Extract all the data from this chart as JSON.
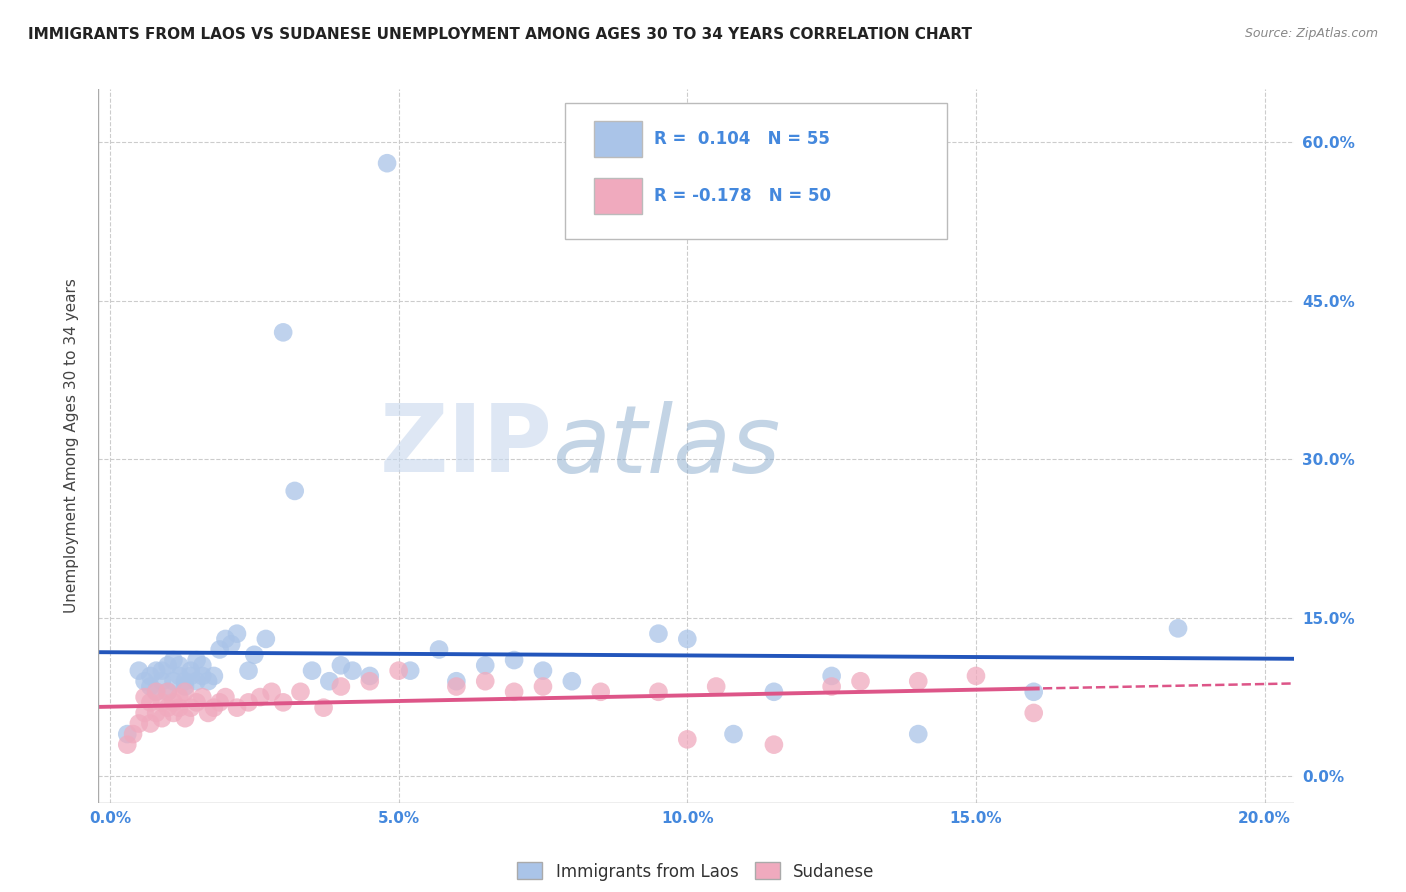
{
  "title": "IMMIGRANTS FROM LAOS VS SUDANESE UNEMPLOYMENT AMONG AGES 30 TO 34 YEARS CORRELATION CHART",
  "source": "Source: ZipAtlas.com",
  "ylabel": "Unemployment Among Ages 30 to 34 years",
  "xlabel_ticks": [
    "0.0%",
    "5.0%",
    "10.0%",
    "15.0%",
    "20.0%"
  ],
  "xlabel_vals": [
    0.0,
    0.05,
    0.1,
    0.15,
    0.2
  ],
  "ylabel_ticks": [
    "0.0%",
    "15.0%",
    "30.0%",
    "45.0%",
    "60.0%"
  ],
  "ylabel_vals": [
    0.0,
    0.15,
    0.3,
    0.45,
    0.6
  ],
  "xlim": [
    -0.002,
    0.205
  ],
  "ylim": [
    -0.025,
    0.65
  ],
  "blue_color": "#aac4e8",
  "pink_color": "#f0aabe",
  "blue_line_color": "#2255bb",
  "pink_line_color": "#dd5588",
  "grid_color": "#cccccc",
  "watermark_zip": "ZIP",
  "watermark_atlas": "atlas",
  "legend_bottom_blue": "Immigrants from Laos",
  "legend_bottom_pink": "Sudanese",
  "blue_scatter_x": [
    0.003,
    0.005,
    0.006,
    0.007,
    0.007,
    0.008,
    0.008,
    0.009,
    0.009,
    0.01,
    0.01,
    0.011,
    0.011,
    0.012,
    0.012,
    0.013,
    0.013,
    0.014,
    0.014,
    0.015,
    0.015,
    0.016,
    0.016,
    0.017,
    0.018,
    0.019,
    0.02,
    0.021,
    0.022,
    0.024,
    0.025,
    0.027,
    0.03,
    0.032,
    0.035,
    0.038,
    0.04,
    0.042,
    0.045,
    0.048,
    0.052,
    0.057,
    0.06,
    0.065,
    0.07,
    0.075,
    0.08,
    0.095,
    0.1,
    0.108,
    0.115,
    0.125,
    0.14,
    0.16,
    0.185
  ],
  "blue_scatter_y": [
    0.04,
    0.1,
    0.09,
    0.085,
    0.095,
    0.08,
    0.1,
    0.09,
    0.1,
    0.08,
    0.105,
    0.09,
    0.11,
    0.095,
    0.105,
    0.085,
    0.09,
    0.095,
    0.1,
    0.09,
    0.11,
    0.095,
    0.105,
    0.09,
    0.095,
    0.12,
    0.13,
    0.125,
    0.135,
    0.1,
    0.115,
    0.13,
    0.42,
    0.27,
    0.1,
    0.09,
    0.105,
    0.1,
    0.095,
    0.58,
    0.1,
    0.12,
    0.09,
    0.105,
    0.11,
    0.1,
    0.09,
    0.135,
    0.13,
    0.04,
    0.08,
    0.095,
    0.04,
    0.08,
    0.14
  ],
  "pink_scatter_x": [
    0.003,
    0.004,
    0.005,
    0.006,
    0.006,
    0.007,
    0.007,
    0.008,
    0.008,
    0.009,
    0.009,
    0.01,
    0.01,
    0.011,
    0.011,
    0.012,
    0.012,
    0.013,
    0.013,
    0.014,
    0.015,
    0.016,
    0.017,
    0.018,
    0.019,
    0.02,
    0.022,
    0.024,
    0.026,
    0.028,
    0.03,
    0.033,
    0.037,
    0.04,
    0.045,
    0.05,
    0.06,
    0.065,
    0.07,
    0.075,
    0.085,
    0.095,
    0.1,
    0.105,
    0.115,
    0.125,
    0.13,
    0.14,
    0.15,
    0.16
  ],
  "pink_scatter_y": [
    0.03,
    0.04,
    0.05,
    0.06,
    0.075,
    0.05,
    0.07,
    0.06,
    0.08,
    0.055,
    0.07,
    0.065,
    0.08,
    0.06,
    0.07,
    0.065,
    0.075,
    0.055,
    0.08,
    0.065,
    0.07,
    0.075,
    0.06,
    0.065,
    0.07,
    0.075,
    0.065,
    0.07,
    0.075,
    0.08,
    0.07,
    0.08,
    0.065,
    0.085,
    0.09,
    0.1,
    0.085,
    0.09,
    0.08,
    0.085,
    0.08,
    0.08,
    0.035,
    0.085,
    0.03,
    0.085,
    0.09,
    0.09,
    0.095,
    0.06
  ]
}
